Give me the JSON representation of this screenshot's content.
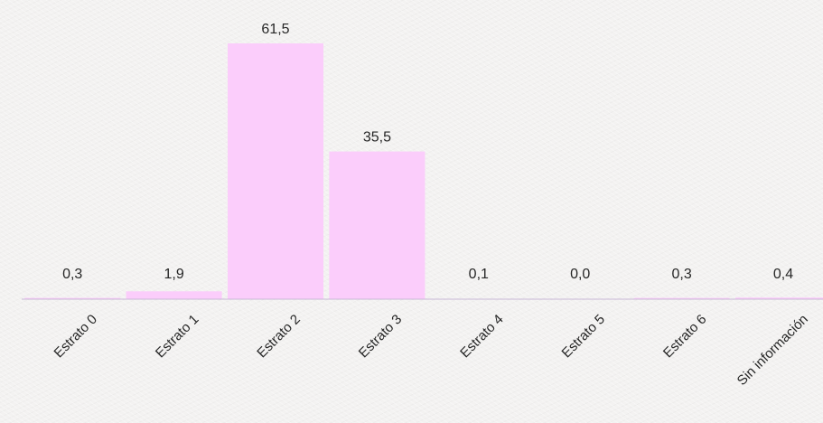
{
  "chart_data": {
    "type": "bar",
    "categories": [
      "Estrato 0",
      "Estrato 1",
      "Estrato 2",
      "Estrato 3",
      "Estrato 4",
      "Estrato 5",
      "Estrato 6",
      "Sin información"
    ],
    "values": [
      0.3,
      1.9,
      61.5,
      35.5,
      0.1,
      0.0,
      0.3,
      0.4
    ],
    "value_labels": [
      "0,3",
      "1,9",
      "61,5",
      "35,5",
      "0,1",
      "0,0",
      "0,3",
      "0,4"
    ],
    "title": "",
    "xlabel": "",
    "ylabel": "",
    "ylim": [
      0,
      61.5
    ],
    "grid": false,
    "legend": "none",
    "colors": {
      "bar": "#fbcdfb",
      "axis": "#c8b8d6",
      "text": "#262626"
    }
  }
}
